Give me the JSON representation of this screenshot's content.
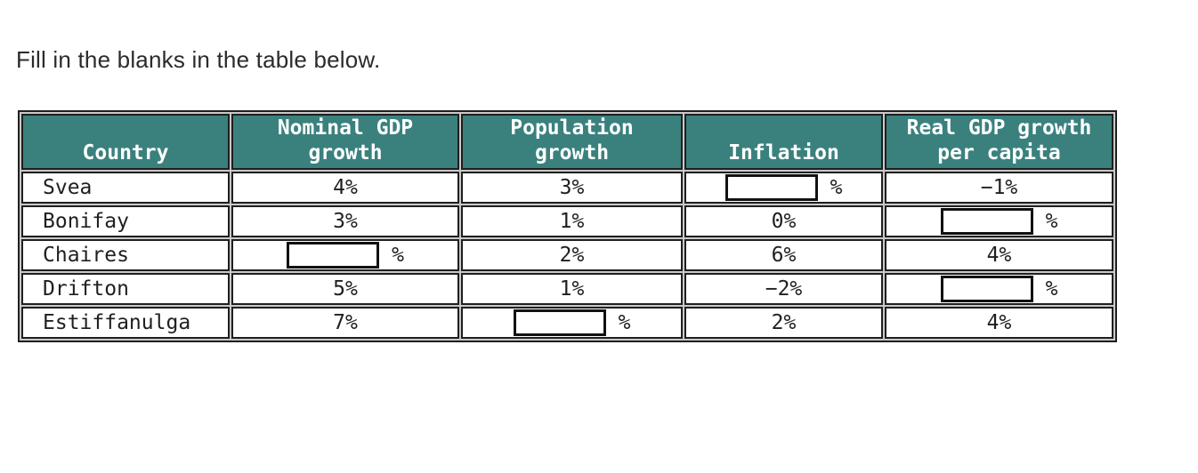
{
  "title": "Fill in the blanks in the table below.",
  "percent_sign": "%",
  "colors": {
    "header_bg": "#3A817E",
    "header_text": "#FFFFFF",
    "body_text": "#1F1F1F",
    "grid_dark": "#1F1F1F",
    "grid_gap": "#C9C9C9",
    "page_bg": "#FFFFFF",
    "input_border": "#111111"
  },
  "table": {
    "headers": {
      "country": "Country",
      "nominal_gdp_growth": "Nominal GDP\ngrowth",
      "population_growth": "Population\ngrowth",
      "inflation": "Inflation",
      "real_gdp_growth_per_capita": "Real GDP growth\nper capita"
    },
    "rows": [
      {
        "country": "Svea",
        "nominal_gdp_growth": "4%",
        "population_growth": "3%",
        "inflation": {
          "blank": true,
          "value": ""
        },
        "real_gdp_growth_per_capita": "−1%"
      },
      {
        "country": "Bonifay",
        "nominal_gdp_growth": "3%",
        "population_growth": "1%",
        "inflation": "0%",
        "real_gdp_growth_per_capita": {
          "blank": true,
          "value": ""
        }
      },
      {
        "country": "Chaires",
        "nominal_gdp_growth": {
          "blank": true,
          "value": ""
        },
        "population_growth": "2%",
        "inflation": "6%",
        "real_gdp_growth_per_capita": "4%"
      },
      {
        "country": "Drifton",
        "nominal_gdp_growth": "5%",
        "population_growth": "1%",
        "inflation": "−2%",
        "real_gdp_growth_per_capita": {
          "blank": true,
          "value": ""
        }
      },
      {
        "country": "Estiffanulga",
        "nominal_gdp_growth": "7%",
        "population_growth": {
          "blank": true,
          "value": ""
        },
        "inflation": "2%",
        "real_gdp_growth_per_capita": "4%"
      }
    ]
  }
}
